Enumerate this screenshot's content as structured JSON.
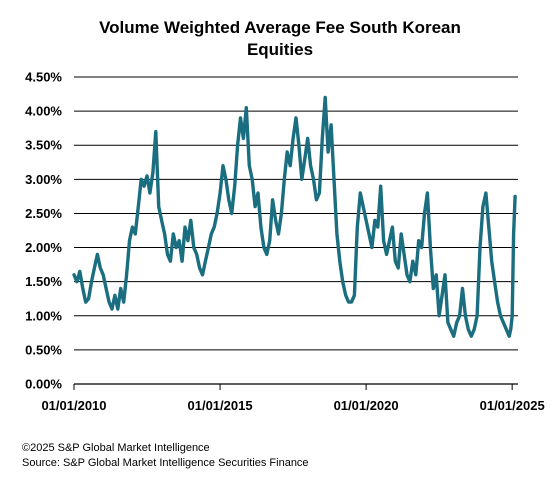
{
  "chart_data": {
    "type": "line",
    "title_lines": [
      "Volume Weighted Average Fee South Korean",
      "Equities"
    ],
    "xlabel": "",
    "ylabel": "",
    "x_ticks": [
      "01/01/2010",
      "01/01/2015",
      "01/01/2020",
      "01/01/2025"
    ],
    "x_tick_years": [
      2010,
      2015,
      2020,
      2025
    ],
    "xlim": [
      2010,
      2025.2
    ],
    "ylim": [
      0,
      4.5
    ],
    "y_ticks": [
      0,
      0.5,
      1.0,
      1.5,
      2.0,
      2.5,
      3.0,
      3.5,
      4.0,
      4.5
    ],
    "y_tick_labels": [
      "0.00%",
      "0.50%",
      "1.00%",
      "1.50%",
      "2.00%",
      "2.50%",
      "3.00%",
      "3.50%",
      "4.00%",
      "4.50%"
    ],
    "grid": true,
    "color": "#1a6e80",
    "series": [
      {
        "x": [
          2010.0,
          2010.1,
          2010.2,
          2010.3,
          2010.4,
          2010.5,
          2010.6,
          2010.7,
          2010.8,
          2010.9,
          2011.0,
          2011.1,
          2011.2,
          2011.3,
          2011.4,
          2011.5,
          2011.6,
          2011.7,
          2011.8,
          2011.9,
          2012.0,
          2012.1,
          2012.2,
          2012.3,
          2012.4,
          2012.5,
          2012.6,
          2012.7,
          2012.8,
          2012.9,
          2013.0,
          2013.1,
          2013.2,
          2013.3,
          2013.4,
          2013.5,
          2013.6,
          2013.7,
          2013.8,
          2013.9,
          2014.0,
          2014.1,
          2014.2,
          2014.3,
          2014.4,
          2014.5,
          2014.6,
          2014.7,
          2014.8,
          2014.9,
          2015.0,
          2015.1,
          2015.2,
          2015.3,
          2015.4,
          2015.5,
          2015.6,
          2015.7,
          2015.8,
          2015.9,
          2016.0,
          2016.1,
          2016.2,
          2016.3,
          2016.4,
          2016.5,
          2016.6,
          2016.7,
          2016.8,
          2016.9,
          2017.0,
          2017.1,
          2017.2,
          2017.3,
          2017.4,
          2017.5,
          2017.6,
          2017.7,
          2017.8,
          2017.9,
          2018.0,
          2018.1,
          2018.2,
          2018.3,
          2018.4,
          2018.5,
          2018.6,
          2018.7,
          2018.8,
          2018.9,
          2019.0,
          2019.1,
          2019.2,
          2019.3,
          2019.4,
          2019.5,
          2019.6,
          2019.7,
          2019.8,
          2019.9,
          2020.0,
          2020.1,
          2020.2,
          2020.3,
          2020.4,
          2020.5,
          2020.6,
          2020.7,
          2020.8,
          2020.9,
          2021.0,
          2021.1,
          2021.2,
          2021.3,
          2021.4,
          2021.5,
          2021.6,
          2021.7,
          2021.8,
          2021.9,
          2022.0,
          2022.1,
          2022.2,
          2022.3,
          2022.4,
          2022.5,
          2022.6,
          2022.7,
          2022.8,
          2022.9,
          2023.0,
          2023.1,
          2023.2,
          2023.3,
          2023.4,
          2023.5,
          2023.6,
          2023.7,
          2023.8,
          2023.9,
          2024.0,
          2024.1,
          2024.2,
          2024.3,
          2024.4,
          2024.5,
          2024.6,
          2024.7,
          2024.8,
          2024.85,
          2024.9,
          2024.95,
          2025.0,
          2025.05,
          2025.1
        ],
        "y": [
          1.6,
          1.5,
          1.65,
          1.4,
          1.2,
          1.25,
          1.5,
          1.7,
          1.9,
          1.7,
          1.6,
          1.4,
          1.2,
          1.1,
          1.3,
          1.1,
          1.4,
          1.2,
          1.6,
          2.1,
          2.3,
          2.2,
          2.6,
          3.0,
          2.9,
          3.05,
          2.8,
          3.1,
          3.7,
          2.6,
          2.4,
          2.2,
          1.9,
          1.8,
          2.2,
          2.0,
          2.1,
          1.8,
          2.3,
          2.1,
          2.4,
          2.0,
          1.9,
          1.7,
          1.6,
          1.8,
          2.0,
          2.2,
          2.3,
          2.5,
          2.8,
          3.2,
          3.0,
          2.7,
          2.5,
          2.9,
          3.5,
          3.9,
          3.6,
          4.05,
          3.2,
          3.0,
          2.6,
          2.8,
          2.3,
          2.0,
          1.9,
          2.1,
          2.7,
          2.4,
          2.2,
          2.5,
          3.0,
          3.4,
          3.2,
          3.6,
          3.9,
          3.5,
          3.0,
          3.3,
          3.6,
          3.2,
          3.0,
          2.7,
          2.8,
          3.6,
          4.2,
          3.4,
          3.8,
          3.0,
          2.2,
          1.8,
          1.5,
          1.3,
          1.2,
          1.2,
          1.3,
          2.3,
          2.8,
          2.6,
          2.4,
          2.2,
          2.0,
          2.4,
          2.3,
          2.9,
          2.1,
          1.9,
          2.1,
          2.3,
          1.8,
          1.7,
          2.2,
          1.9,
          1.6,
          1.5,
          1.8,
          1.6,
          2.1,
          2.0,
          2.5,
          2.8,
          2.0,
          1.4,
          1.6,
          1.0,
          1.3,
          1.6,
          0.9,
          0.8,
          0.7,
          0.9,
          1.0,
          1.4,
          1.0,
          0.8,
          0.7,
          0.8,
          1.0,
          2.0,
          2.6,
          2.8,
          2.3,
          1.8,
          1.5,
          1.2,
          1.0,
          0.9,
          0.8,
          0.75,
          0.7,
          0.8,
          1.0,
          2.2,
          2.75
        ]
      }
    ]
  },
  "footer": {
    "copyright": "©2025 S&P Global Market Intelligence",
    "source": "Source: S&P Global Market Intelligence Securities Finance"
  }
}
